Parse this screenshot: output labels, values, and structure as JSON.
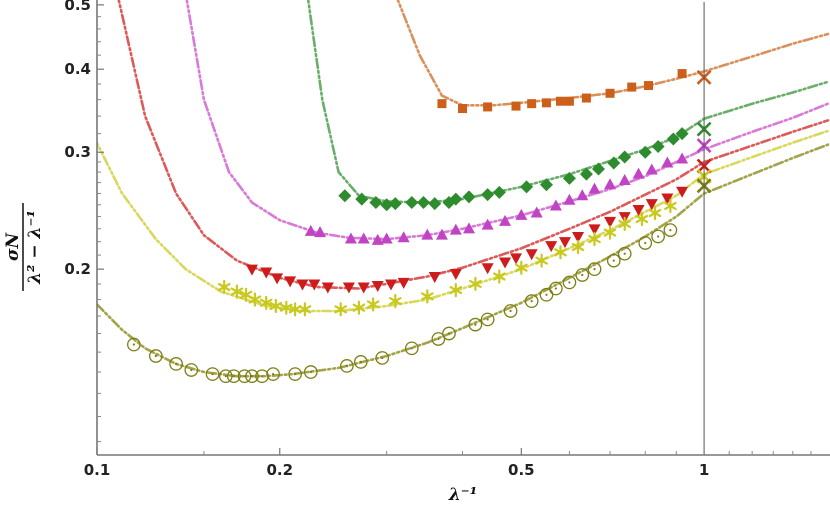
{
  "chart_data": {
    "type": "scatter",
    "x_scale": "log",
    "y_scale": "log",
    "xlim": [
      0.1,
      1.6
    ],
    "ylim": [
      0.105,
      0.505
    ],
    "xticks": [
      {
        "v": 0.1,
        "label": "0.1"
      },
      {
        "v": 0.2,
        "label": "0.2"
      },
      {
        "v": 0.5,
        "label": "0.5"
      },
      {
        "v": 1,
        "label": "1"
      }
    ],
    "yticks": [
      {
        "v": 0.2,
        "label": "0.2"
      },
      {
        "v": 0.3,
        "label": "0.3"
      },
      {
        "v": 0.4,
        "label": "0.4"
      },
      {
        "v": 0.5,
        "label": "0.5"
      }
    ],
    "xlabel": "λ⁻¹",
    "ylabel_num": "σN",
    "ylabel_den": "λ² − λ⁻¹",
    "vertical_line_x": 1,
    "series": [
      {
        "color": "#cc5f1a",
        "curve_color": "#d9905c",
        "marker": "square",
        "curve": [
          [
            0.31,
            0.52
          ],
          [
            0.34,
            0.42
          ],
          [
            0.37,
            0.365
          ],
          [
            0.4,
            0.353
          ],
          [
            0.45,
            0.353
          ],
          [
            0.5,
            0.356
          ],
          [
            0.6,
            0.362
          ],
          [
            0.7,
            0.368
          ],
          [
            0.8,
            0.377
          ],
          [
            0.9,
            0.387
          ],
          [
            1.0,
            0.397
          ],
          [
            1.2,
            0.418
          ],
          [
            1.4,
            0.437
          ],
          [
            1.6,
            0.452
          ]
        ],
        "points": [
          [
            0.37,
            0.355
          ],
          [
            0.4,
            0.349
          ],
          [
            0.44,
            0.351
          ],
          [
            0.49,
            0.352
          ],
          [
            0.52,
            0.355
          ],
          [
            0.55,
            0.356
          ],
          [
            0.58,
            0.358
          ],
          [
            0.6,
            0.358
          ],
          [
            0.64,
            0.362
          ],
          [
            0.7,
            0.368
          ],
          [
            0.76,
            0.376
          ],
          [
            0.81,
            0.378
          ],
          [
            0.92,
            0.394
          ]
        ],
        "endpoint": [
          1.0,
          0.389
        ]
      },
      {
        "color": "#2e8b2e",
        "curve_color": "#6aae6a",
        "marker": "diamond",
        "curve": [
          [
            0.222,
            0.52
          ],
          [
            0.235,
            0.36
          ],
          [
            0.25,
            0.28
          ],
          [
            0.27,
            0.258
          ],
          [
            0.3,
            0.253
          ],
          [
            0.35,
            0.252
          ],
          [
            0.4,
            0.255
          ],
          [
            0.5,
            0.266
          ],
          [
            0.6,
            0.278
          ],
          [
            0.7,
            0.291
          ],
          [
            0.8,
            0.303
          ],
          [
            0.9,
            0.316
          ],
          [
            1.0,
            0.337
          ],
          [
            1.2,
            0.355
          ],
          [
            1.4,
            0.369
          ],
          [
            1.6,
            0.383
          ]
        ],
        "points": [
          [
            0.256,
            0.258
          ],
          [
            0.273,
            0.255
          ],
          [
            0.288,
            0.252
          ],
          [
            0.3,
            0.25
          ],
          [
            0.31,
            0.251
          ],
          [
            0.33,
            0.252
          ],
          [
            0.345,
            0.252
          ],
          [
            0.36,
            0.251
          ],
          [
            0.38,
            0.252
          ],
          [
            0.39,
            0.255
          ],
          [
            0.41,
            0.257
          ],
          [
            0.44,
            0.259
          ],
          [
            0.46,
            0.261
          ],
          [
            0.51,
            0.266
          ],
          [
            0.55,
            0.268
          ],
          [
            0.6,
            0.274
          ],
          [
            0.64,
            0.278
          ],
          [
            0.67,
            0.283
          ],
          [
            0.71,
            0.289
          ],
          [
            0.74,
            0.295
          ],
          [
            0.8,
            0.3
          ],
          [
            0.84,
            0.306
          ],
          [
            0.89,
            0.314
          ],
          [
            0.92,
            0.32
          ]
        ],
        "endpoint": [
          1.0,
          0.325
        ]
      },
      {
        "color": "#c044c4",
        "curve_color": "#d87ad8",
        "marker": "triangle-up",
        "curve": [
          [
            0.14,
            0.52
          ],
          [
            0.15,
            0.36
          ],
          [
            0.165,
            0.28
          ],
          [
            0.18,
            0.252
          ],
          [
            0.2,
            0.237
          ],
          [
            0.23,
            0.227
          ],
          [
            0.26,
            0.223
          ],
          [
            0.3,
            0.222
          ],
          [
            0.35,
            0.225
          ],
          [
            0.4,
            0.23
          ],
          [
            0.5,
            0.241
          ],
          [
            0.6,
            0.253
          ],
          [
            0.7,
            0.264
          ],
          [
            0.8,
            0.276
          ],
          [
            0.9,
            0.29
          ],
          [
            1.0,
            0.303
          ],
          [
            1.2,
            0.322
          ],
          [
            1.4,
            0.338
          ],
          [
            1.6,
            0.355
          ]
        ],
        "points": [
          [
            0.225,
            0.228
          ],
          [
            0.233,
            0.227
          ],
          [
            0.262,
            0.222
          ],
          [
            0.275,
            0.222
          ],
          [
            0.29,
            0.221
          ],
          [
            0.3,
            0.222
          ],
          [
            0.32,
            0.223
          ],
          [
            0.35,
            0.225
          ],
          [
            0.37,
            0.225
          ],
          [
            0.39,
            0.229
          ],
          [
            0.41,
            0.23
          ],
          [
            0.44,
            0.233
          ],
          [
            0.47,
            0.236
          ],
          [
            0.5,
            0.241
          ],
          [
            0.53,
            0.243
          ],
          [
            0.57,
            0.249
          ],
          [
            0.6,
            0.254
          ],
          [
            0.63,
            0.258
          ],
          [
            0.66,
            0.264
          ],
          [
            0.7,
            0.268
          ],
          [
            0.74,
            0.272
          ],
          [
            0.78,
            0.278
          ],
          [
            0.82,
            0.282
          ],
          [
            0.87,
            0.289
          ],
          [
            0.92,
            0.293
          ]
        ],
        "endpoint": [
          1.0,
          0.307
        ]
      },
      {
        "color": "#cc1c1c",
        "curve_color": "#dc5a5a",
        "marker": "triangle-down",
        "curve": [
          [
            0.108,
            0.52
          ],
          [
            0.12,
            0.34
          ],
          [
            0.135,
            0.26
          ],
          [
            0.15,
            0.225
          ],
          [
            0.17,
            0.206
          ],
          [
            0.2,
            0.194
          ],
          [
            0.23,
            0.188
          ],
          [
            0.27,
            0.187
          ],
          [
            0.3,
            0.19
          ],
          [
            0.35,
            0.195
          ],
          [
            0.4,
            0.201
          ],
          [
            0.5,
            0.215
          ],
          [
            0.6,
            0.23
          ],
          [
            0.7,
            0.244
          ],
          [
            0.8,
            0.259
          ],
          [
            0.9,
            0.273
          ],
          [
            1.0,
            0.29
          ],
          [
            1.2,
            0.307
          ],
          [
            1.4,
            0.322
          ],
          [
            1.6,
            0.335
          ]
        ],
        "points": [
          [
            0.18,
            0.2
          ],
          [
            0.19,
            0.198
          ],
          [
            0.198,
            0.194
          ],
          [
            0.208,
            0.192
          ],
          [
            0.218,
            0.19
          ],
          [
            0.228,
            0.19
          ],
          [
            0.24,
            0.188
          ],
          [
            0.26,
            0.188
          ],
          [
            0.275,
            0.188
          ],
          [
            0.29,
            0.189
          ],
          [
            0.305,
            0.19
          ],
          [
            0.32,
            0.191
          ],
          [
            0.36,
            0.195
          ],
          [
            0.39,
            0.197
          ],
          [
            0.44,
            0.201
          ],
          [
            0.47,
            0.205
          ],
          [
            0.49,
            0.208
          ],
          [
            0.52,
            0.211
          ],
          [
            0.56,
            0.217
          ],
          [
            0.59,
            0.22
          ],
          [
            0.62,
            0.224
          ],
          [
            0.66,
            0.23
          ],
          [
            0.7,
            0.236
          ],
          [
            0.74,
            0.24
          ],
          [
            0.78,
            0.246
          ],
          [
            0.82,
            0.251
          ],
          [
            0.87,
            0.256
          ],
          [
            0.92,
            0.262
          ]
        ],
        "endpoint": [
          1.0,
          0.286
        ]
      },
      {
        "color": "#c8c81e",
        "curve_color": "#d8d85c",
        "marker": "asterisk",
        "curve": [
          [
            0.08,
            0.52
          ],
          [
            0.095,
            0.34
          ],
          [
            0.11,
            0.26
          ],
          [
            0.125,
            0.222
          ],
          [
            0.14,
            0.2
          ],
          [
            0.16,
            0.185
          ],
          [
            0.19,
            0.176
          ],
          [
            0.22,
            0.173
          ],
          [
            0.25,
            0.173
          ],
          [
            0.3,
            0.176
          ],
          [
            0.35,
            0.18
          ],
          [
            0.4,
            0.187
          ],
          [
            0.5,
            0.2
          ],
          [
            0.6,
            0.215
          ],
          [
            0.7,
            0.229
          ],
          [
            0.8,
            0.244
          ],
          [
            0.9,
            0.258
          ],
          [
            1.0,
            0.278
          ],
          [
            1.2,
            0.295
          ],
          [
            1.4,
            0.31
          ],
          [
            1.6,
            0.323
          ]
        ],
        "points": [
          [
            0.162,
            0.188
          ],
          [
            0.17,
            0.185
          ],
          [
            0.176,
            0.183
          ],
          [
            0.182,
            0.18
          ],
          [
            0.19,
            0.178
          ],
          [
            0.197,
            0.176
          ],
          [
            0.205,
            0.175
          ],
          [
            0.212,
            0.174
          ],
          [
            0.22,
            0.174
          ],
          [
            0.252,
            0.174
          ],
          [
            0.27,
            0.175
          ],
          [
            0.285,
            0.177
          ],
          [
            0.31,
            0.179
          ],
          [
            0.35,
            0.182
          ],
          [
            0.39,
            0.186
          ],
          [
            0.42,
            0.19
          ],
          [
            0.46,
            0.195
          ],
          [
            0.5,
            0.201
          ],
          [
            0.54,
            0.206
          ],
          [
            0.58,
            0.212
          ],
          [
            0.62,
            0.216
          ],
          [
            0.66,
            0.222
          ],
          [
            0.7,
            0.227
          ],
          [
            0.74,
            0.234
          ],
          [
            0.79,
            0.238
          ],
          [
            0.83,
            0.243
          ],
          [
            0.88,
            0.249
          ]
        ],
        "endpoint": [
          1.0,
          0.276
        ]
      },
      {
        "color": "#7d7d14",
        "curve_color": "#a3a34a",
        "marker": "circle-dot",
        "curve": [
          [
            0.1,
            0.177
          ],
          [
            0.11,
            0.162
          ],
          [
            0.12,
            0.152
          ],
          [
            0.135,
            0.144
          ],
          [
            0.15,
            0.14
          ],
          [
            0.17,
            0.138
          ],
          [
            0.19,
            0.138
          ],
          [
            0.21,
            0.139
          ],
          [
            0.25,
            0.142
          ],
          [
            0.3,
            0.148
          ],
          [
            0.35,
            0.155
          ],
          [
            0.4,
            0.163
          ],
          [
            0.5,
            0.178
          ],
          [
            0.6,
            0.194
          ],
          [
            0.7,
            0.209
          ],
          [
            0.8,
            0.224
          ],
          [
            0.9,
            0.24
          ],
          [
            1.0,
            0.26
          ],
          [
            1.2,
            0.278
          ],
          [
            1.4,
            0.294
          ],
          [
            1.6,
            0.308
          ]
        ],
        "points": [
          [
            0.115,
            0.154
          ],
          [
            0.125,
            0.148
          ],
          [
            0.135,
            0.144
          ],
          [
            0.143,
            0.141
          ],
          [
            0.155,
            0.139
          ],
          [
            0.163,
            0.138
          ],
          [
            0.168,
            0.138
          ],
          [
            0.175,
            0.138
          ],
          [
            0.18,
            0.138
          ],
          [
            0.187,
            0.138
          ],
          [
            0.195,
            0.139
          ],
          [
            0.212,
            0.139
          ],
          [
            0.225,
            0.14
          ],
          [
            0.258,
            0.143
          ],
          [
            0.272,
            0.145
          ],
          [
            0.295,
            0.147
          ],
          [
            0.33,
            0.152
          ],
          [
            0.365,
            0.157
          ],
          [
            0.38,
            0.16
          ],
          [
            0.42,
            0.165
          ],
          [
            0.44,
            0.168
          ],
          [
            0.48,
            0.173
          ],
          [
            0.52,
            0.179
          ],
          [
            0.55,
            0.183
          ],
          [
            0.57,
            0.187
          ],
          [
            0.6,
            0.191
          ],
          [
            0.63,
            0.196
          ],
          [
            0.66,
            0.2
          ],
          [
            0.71,
            0.206
          ],
          [
            0.74,
            0.211
          ],
          [
            0.8,
            0.219
          ],
          [
            0.84,
            0.224
          ],
          [
            0.88,
            0.229
          ]
        ],
        "endpoint": [
          1.0,
          0.267
        ]
      }
    ]
  }
}
